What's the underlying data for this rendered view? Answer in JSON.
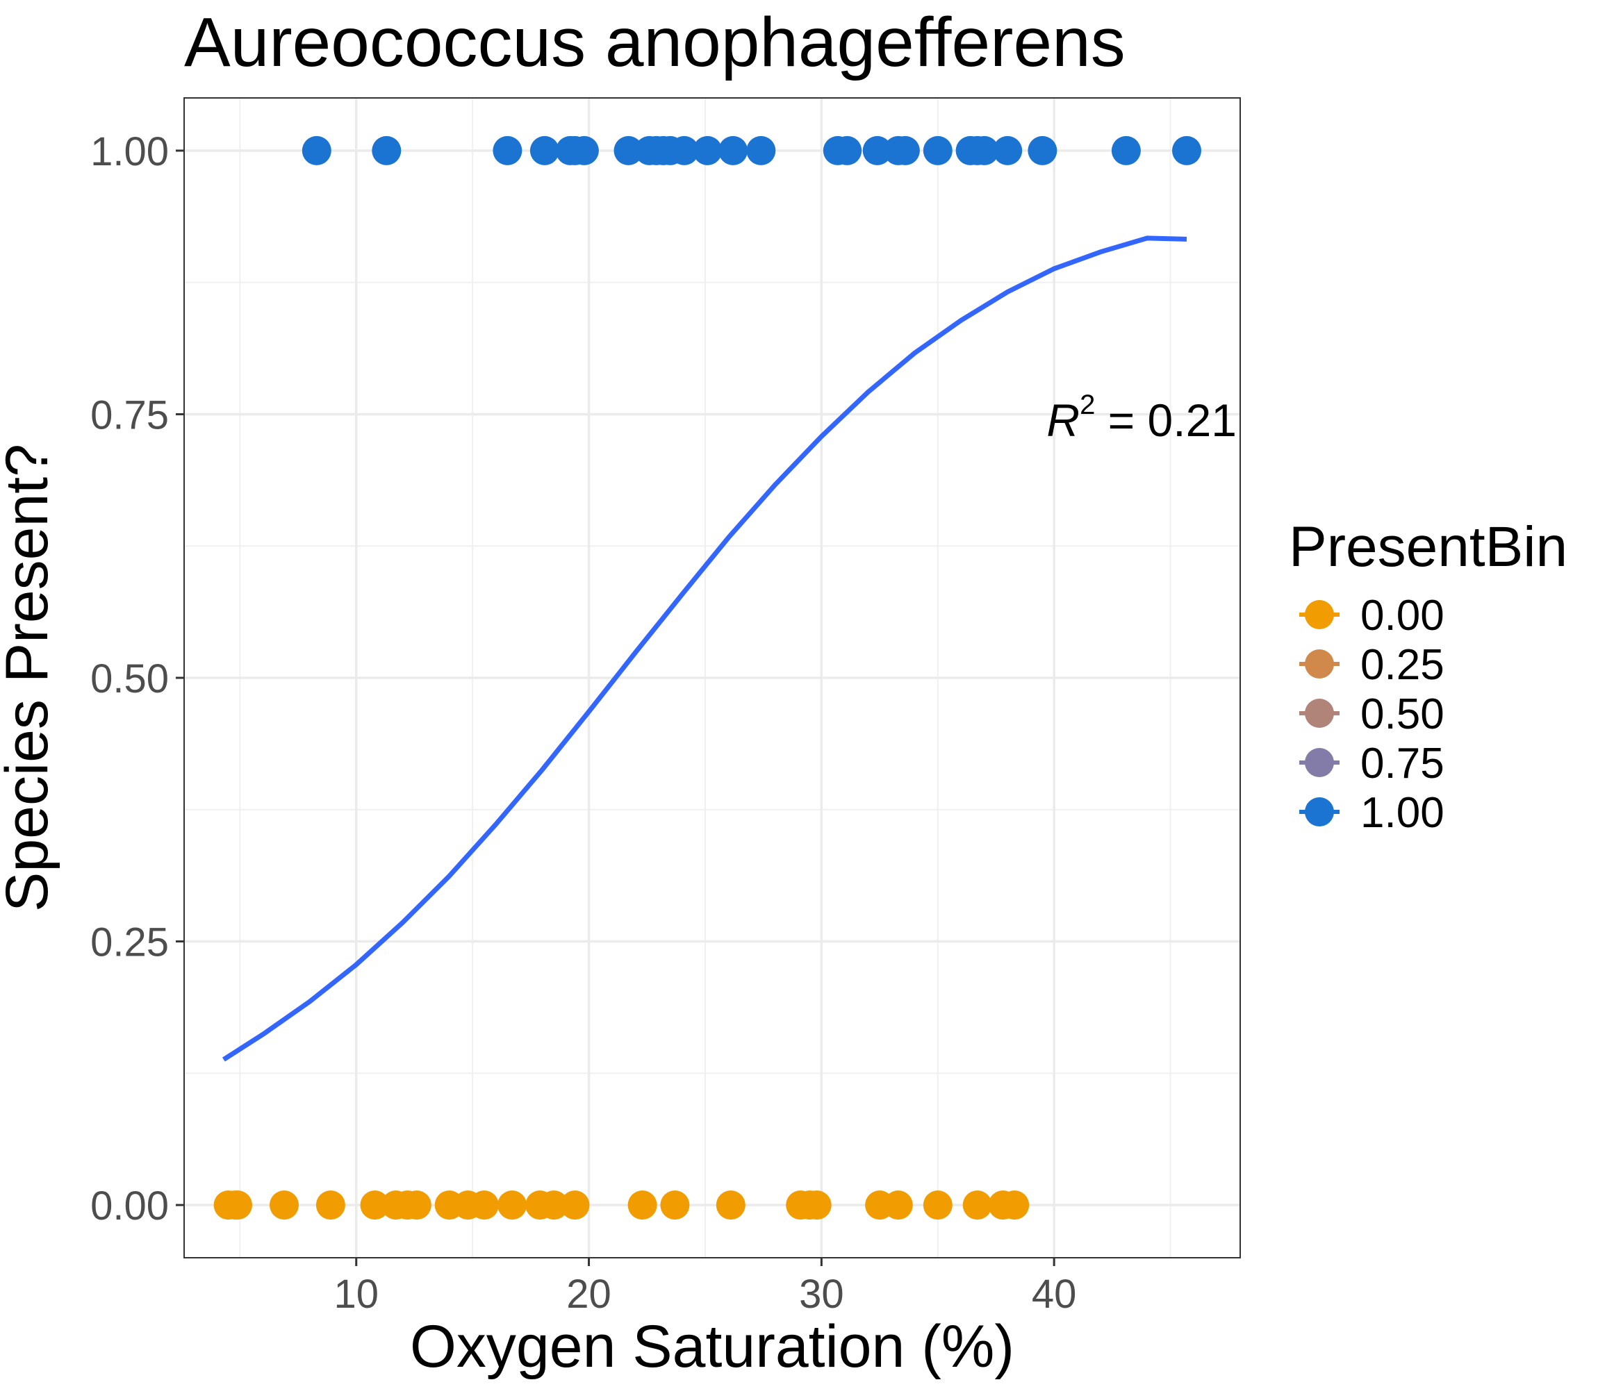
{
  "chart_data": {
    "type": "scatter",
    "title": "Aureococcus anophagefferens",
    "xlabel": "Oxygen Saturation (%)",
    "ylabel": "Species Present?",
    "xlim": [
      2.6,
      48.0
    ],
    "ylim": [
      -0.05,
      1.05
    ],
    "x_ticks": [
      {
        "value": 10,
        "label": "10"
      },
      {
        "value": 20,
        "label": "20"
      },
      {
        "value": 30,
        "label": "30"
      },
      {
        "value": 40,
        "label": "40"
      }
    ],
    "y_ticks": [
      {
        "value": 0,
        "label": "0.00"
      },
      {
        "value": 0.25,
        "label": "0.25"
      },
      {
        "value": 0.5,
        "label": "0.50"
      },
      {
        "value": 0.75,
        "label": "0.75"
      },
      {
        "value": 1,
        "label": "1.00"
      }
    ],
    "grid": true,
    "legend": {
      "title": "PresentBin",
      "placement": "right",
      "entries": [
        {
          "label": "0.00",
          "color": "#F19C00"
        },
        {
          "label": "0.25",
          "color": "#D0894A"
        },
        {
          "label": "0.50",
          "color": "#B08478"
        },
        {
          "label": "0.75",
          "color": "#837CA8"
        },
        {
          "label": "1.00",
          "color": "#1B74D2"
        }
      ]
    },
    "series": [
      {
        "value": 0,
        "color": "#F19C00",
        "x": [
          4.5,
          4.8,
          4.9,
          6.9,
          8.9,
          10.8,
          11.7,
          12.2,
          12.6,
          14.0,
          14.8,
          15.5,
          16.7,
          17.9,
          18.5,
          19.4,
          22.3,
          23.7,
          26.1,
          29.1,
          29.5,
          29.8,
          32.5,
          33.3,
          35.0,
          36.7,
          37.8,
          38.3
        ]
      },
      {
        "value": 1,
        "color": "#1B74D2",
        "x": [
          8.3,
          11.3,
          16.5,
          18.1,
          19.2,
          19.4,
          19.8,
          21.7,
          22.6,
          22.9,
          23.2,
          23.5,
          24.1,
          25.1,
          26.2,
          27.4,
          30.7,
          31.1,
          32.4,
          33.3,
          33.6,
          35.0,
          36.4,
          36.7,
          37.0,
          38.0,
          39.5,
          43.1,
          45.7
        ]
      }
    ],
    "fit_line": {
      "color": "#3366FF",
      "x": [
        4.3,
        6.0,
        8.0,
        10.0,
        12.0,
        14.0,
        16.0,
        18.0,
        20.0,
        22.0,
        24.0,
        26.0,
        28.0,
        30.0,
        32.0,
        34.0,
        36.0,
        38.0,
        40.0,
        42.0,
        44.0,
        45.7
      ],
      "y": [
        0.138,
        0.162,
        0.193,
        0.228,
        0.268,
        0.312,
        0.361,
        0.413,
        0.468,
        0.524,
        0.579,
        0.633,
        0.683,
        0.729,
        0.771,
        0.808,
        0.839,
        0.866,
        0.888,
        0.904,
        0.917,
        0.916
      ]
    },
    "annotation": {
      "symbol": "R",
      "superscript": "2",
      "text": " = 0.21"
    }
  }
}
